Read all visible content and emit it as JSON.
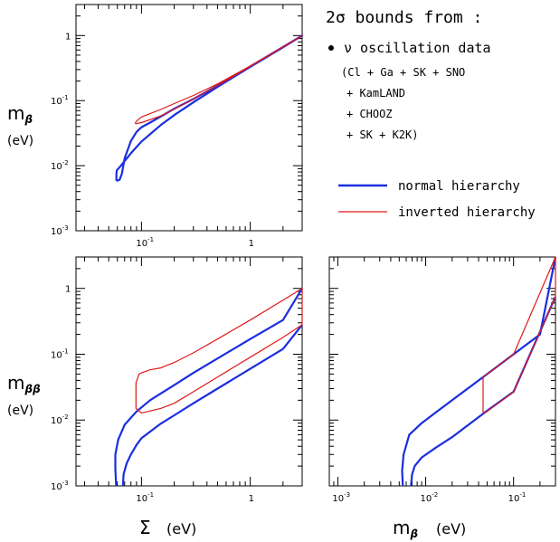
{
  "legend": {
    "heading": "2σ bounds from :",
    "bullet_text": "ν oscillation data",
    "lines": [
      "(Cl + Ga + SK + SNO",
      "+ KamLAND",
      "+ CHOOZ",
      "+ SK + K2K)"
    ],
    "series": [
      {
        "name": "normal hierarchy",
        "color": "#1a2ee0"
      },
      {
        "name": "inverted hierarchy",
        "color": "#e01818"
      }
    ]
  },
  "chart_data": [
    {
      "id": "top-left",
      "type": "line",
      "x_scale": "log",
      "y_scale": "log",
      "xlim": [
        0.025,
        3.0
      ],
      "ylim": [
        0.001,
        3.0
      ],
      "xticks": [
        {
          "v": 0.1,
          "t": "10",
          "e": "-1"
        },
        {
          "v": 1,
          "t": "1",
          "e": ""
        }
      ],
      "yticks": [
        {
          "v": 0.001,
          "t": "10",
          "e": "-3"
        },
        {
          "v": 0.01,
          "t": "10",
          "e": "-2"
        },
        {
          "v": 0.1,
          "t": "10",
          "e": "-1"
        },
        {
          "v": 1,
          "t": "1",
          "e": ""
        }
      ],
      "ylabel": "m",
      "ylabel_sub": "β",
      "yunit": "(eV)",
      "xlabel": "",
      "xunit": "",
      "series": [
        {
          "name": "normal hierarchy",
          "color": "#1a2ee0",
          "width": 2.2,
          "points": [
            [
              0.0587,
              0.0059
            ],
            [
              0.0588,
              0.0075
            ],
            [
              0.0593,
              0.0085
            ],
            [
              0.063,
              0.0095
            ],
            [
              0.07,
              0.0118
            ],
            [
              0.08,
              0.0155
            ],
            [
              0.1,
              0.0235
            ],
            [
              0.15,
              0.042
            ],
            [
              0.2,
              0.06
            ],
            [
              0.3,
              0.094
            ],
            [
              0.5,
              0.162
            ],
            [
              1,
              0.33
            ],
            [
              2,
              0.66
            ],
            [
              3,
              1.0
            ],
            [
              2,
              0.665
            ],
            [
              1,
              0.335
            ],
            [
              0.5,
              0.17
            ],
            [
              0.3,
              0.106
            ],
            [
              0.2,
              0.075
            ],
            [
              0.15,
              0.057
            ],
            [
              0.12,
              0.046
            ],
            [
              0.1,
              0.039
            ],
            [
              0.09,
              0.033
            ],
            [
              0.08,
              0.024
            ],
            [
              0.07,
              0.013
            ],
            [
              0.066,
              0.0075
            ],
            [
              0.063,
              0.0061
            ],
            [
              0.06,
              0.0059
            ],
            [
              0.0587,
              0.0059
            ]
          ]
        },
        {
          "name": "inverted hierarchy",
          "color": "#e01818",
          "width": 1.2,
          "points": [
            [
              0.088,
              0.044
            ],
            [
              0.1,
              0.046
            ],
            [
              0.15,
              0.058
            ],
            [
              0.2,
              0.074
            ],
            [
              0.3,
              0.106
            ],
            [
              0.5,
              0.17
            ],
            [
              1,
              0.335
            ],
            [
              2,
              0.665
            ],
            [
              3,
              1.0
            ],
            [
              2,
              0.67
            ],
            [
              1,
              0.34
            ],
            [
              0.5,
              0.18
            ],
            [
              0.3,
              0.12
            ],
            [
              0.2,
              0.09
            ],
            [
              0.15,
              0.073
            ],
            [
              0.12,
              0.063
            ],
            [
              0.1,
              0.056
            ],
            [
              0.092,
              0.05
            ],
            [
              0.088,
              0.046
            ],
            [
              0.088,
              0.044
            ]
          ]
        }
      ]
    },
    {
      "id": "bottom-left",
      "type": "line",
      "x_scale": "log",
      "y_scale": "log",
      "xlim": [
        0.025,
        3.0
      ],
      "ylim": [
        0.001,
        3.0
      ],
      "xticks": [
        {
          "v": 0.1,
          "t": "10",
          "e": "-1"
        },
        {
          "v": 1,
          "t": "1",
          "e": ""
        }
      ],
      "yticks": [
        {
          "v": 0.001,
          "t": "10",
          "e": "-3"
        },
        {
          "v": 0.01,
          "t": "10",
          "e": "-2"
        },
        {
          "v": 0.1,
          "t": "10",
          "e": "-1"
        },
        {
          "v": 1,
          "t": "1",
          "e": ""
        }
      ],
      "ylabel": "m",
      "ylabel_sub": "ββ",
      "yunit": "(eV)",
      "xlabel": "Σ",
      "xunit": "(eV)",
      "series": [
        {
          "name": "normal hierarchy",
          "color": "#1a2ee0",
          "width": 2.2,
          "points": [
            [
              0.0585,
              0.001
            ],
            [
              0.0575,
              0.0018
            ],
            [
              0.0575,
              0.003
            ],
            [
              0.061,
              0.005
            ],
            [
              0.07,
              0.0085
            ],
            [
              0.09,
              0.0135
            ],
            [
              0.12,
              0.02
            ],
            [
              0.2,
              0.034
            ],
            [
              0.3,
              0.052
            ],
            [
              0.5,
              0.086
            ],
            [
              1,
              0.17
            ],
            [
              2,
              0.33
            ],
            [
              3,
              1.0
            ]
          ],
          "points2": [
            [
              0.0675,
              0.001
            ],
            [
              0.0685,
              0.0015
            ],
            [
              0.073,
              0.0022
            ],
            [
              0.08,
              0.003
            ],
            [
              0.09,
              0.0042
            ],
            [
              0.1,
              0.0053
            ],
            [
              0.15,
              0.0088
            ],
            [
              0.2,
              0.0118
            ],
            [
              0.3,
              0.018
            ],
            [
              0.5,
              0.03
            ],
            [
              1,
              0.06
            ],
            [
              2,
              0.12
            ],
            [
              3,
              0.28
            ]
          ]
        },
        {
          "name": "inverted hierarchy",
          "color": "#e01818",
          "width": 1.2,
          "points": [
            [
              0.089,
              0.037
            ],
            [
              0.089,
              0.015
            ],
            [
              0.1,
              0.0128
            ],
            [
              0.15,
              0.015
            ],
            [
              0.2,
              0.018
            ],
            [
              0.3,
              0.027
            ],
            [
              0.5,
              0.045
            ],
            [
              1,
              0.09
            ],
            [
              2,
              0.18
            ],
            [
              3,
              0.28
            ],
            [
              3,
              1.0
            ],
            [
              2,
              0.66
            ],
            [
              1,
              0.33
            ],
            [
              0.5,
              0.17
            ],
            [
              0.3,
              0.105
            ],
            [
              0.2,
              0.075
            ],
            [
              0.15,
              0.062
            ],
            [
              0.12,
              0.058
            ],
            [
              0.1,
              0.052
            ],
            [
              0.095,
              0.05
            ],
            [
              0.089,
              0.037
            ]
          ]
        }
      ]
    },
    {
      "id": "bottom-right",
      "type": "line",
      "x_scale": "log",
      "y_scale": "log",
      "xlim": [
        0.0008,
        0.3
      ],
      "ylim": [
        0.001,
        3.0
      ],
      "xticks": [
        {
          "v": 0.001,
          "t": "10",
          "e": "-3"
        },
        {
          "v": 0.01,
          "t": "10",
          "e": "-2"
        },
        {
          "v": 0.1,
          "t": "10",
          "e": "-1"
        }
      ],
      "yticks": [],
      "ylabel": "",
      "ylabel_sub": "",
      "yunit": "",
      "xlabel": "m",
      "xlabel_sub": "β",
      "xunit": "(eV)",
      "series": [
        {
          "name": "normal hierarchy",
          "color": "#1a2ee0",
          "width": 2.2,
          "points": [
            [
              0.0055,
              0.001
            ],
            [
              0.0054,
              0.0017
            ],
            [
              0.0056,
              0.003
            ],
            [
              0.0065,
              0.006
            ],
            [
              0.009,
              0.009
            ],
            [
              0.013,
              0.013
            ],
            [
              0.02,
              0.02
            ],
            [
              0.045,
              0.045
            ],
            [
              0.1,
              0.1
            ],
            [
              0.2,
              0.2
            ],
            [
              0.3,
              3.0
            ]
          ],
          "points2": [
            [
              0.0068,
              0.001
            ],
            [
              0.007,
              0.0015
            ],
            [
              0.0075,
              0.002
            ],
            [
              0.009,
              0.0027
            ],
            [
              0.013,
              0.0038
            ],
            [
              0.02,
              0.0055
            ],
            [
              0.045,
              0.0125
            ],
            [
              0.1,
              0.027
            ],
            [
              0.3,
              0.75
            ]
          ]
        },
        {
          "name": "inverted hierarchy",
          "color": "#e01818",
          "width": 1.2,
          "points": [
            [
              0.045,
              0.045
            ],
            [
              0.045,
              0.0128
            ],
            [
              0.05,
              0.0135
            ],
            [
              0.1,
              0.027
            ],
            [
              0.3,
              0.75
            ],
            [
              0.3,
              3.0
            ],
            [
              0.1,
              0.1
            ],
            [
              0.045,
              0.045
            ]
          ]
        }
      ]
    }
  ]
}
